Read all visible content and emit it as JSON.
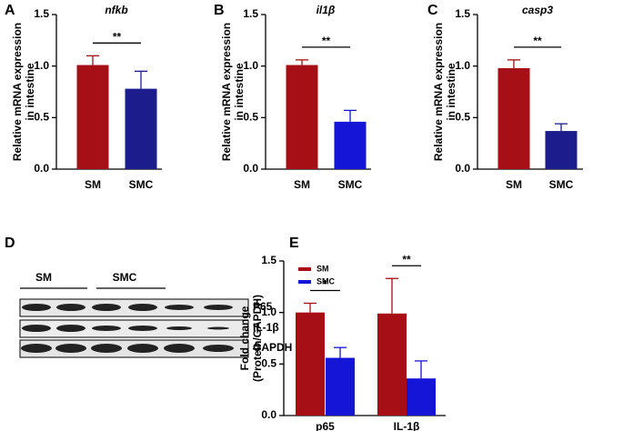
{
  "chart_data": [
    {
      "type": "bar",
      "panel_label": "A",
      "title": "nfkb",
      "ylabel": [
        "Relative mRNA expression",
        "in intestine"
      ],
      "categories": [
        "SM",
        "SMC"
      ],
      "values": [
        1.01,
        0.78
      ],
      "errors": [
        0.09,
        0.17
      ],
      "colors": [
        "#a50f15",
        "#1c1c8c"
      ],
      "annotation": "**",
      "ylim": [
        0,
        1.5
      ],
      "yticks": [
        {
          "value": 0,
          "label": "0.0"
        },
        0.5,
        {
          "value": 1,
          "label": "1.0"
        },
        1.5
      ]
    },
    {
      "type": "bar",
      "panel_label": "B",
      "title": "il1β",
      "ylabel": [
        "Relative mRNA expression",
        "in intestine"
      ],
      "categories": [
        "SM",
        "SMC"
      ],
      "values": [
        1.01,
        0.46
      ],
      "errors": [
        0.05,
        0.11
      ],
      "colors": [
        "#a50f15",
        "#1515d8"
      ],
      "annotation": "**",
      "ylim": [
        0,
        1.5
      ],
      "yticks": [
        {
          "value": 0,
          "label": "0.0"
        },
        0.5,
        {
          "value": 1,
          "label": "1.0"
        },
        1.5
      ]
    },
    {
      "type": "bar",
      "panel_label": "C",
      "title": "casp3",
      "ylabel": [
        "Relative mRNA expression",
        "in intestine"
      ],
      "categories": [
        "SM",
        "SMC"
      ],
      "values": [
        0.98,
        0.37
      ],
      "errors": [
        0.08,
        0.07
      ],
      "colors": [
        "#a50f15",
        "#1c1c8c"
      ],
      "annotation": "**",
      "ylim": [
        0,
        1.5
      ],
      "yticks": [
        {
          "value": 0,
          "label": "0.0"
        },
        0.5,
        {
          "value": 1,
          "label": "1.0"
        },
        1.5
      ]
    },
    {
      "type": "grouped_bar",
      "panel_label": "E",
      "ylabel": [
        "Fold change",
        "(Protein/GAPDH)"
      ],
      "categories": [
        "p65",
        "IL-1β"
      ],
      "annotations": [
        "*",
        "**"
      ],
      "series": [
        {
          "name": "SM",
          "color": "#a50f15",
          "values": [
            1.0,
            0.99
          ],
          "errors": [
            0.09,
            0.34
          ]
        },
        {
          "name": "SMC",
          "color": "#1515d8",
          "values": [
            0.56,
            0.36
          ],
          "errors": [
            0.1,
            0.17
          ]
        }
      ],
      "legend": "upper left",
      "ylim": [
        0,
        1.5
      ],
      "yticks": [
        {
          "value": 0,
          "label": "0.0"
        },
        0.5,
        {
          "value": 1,
          "label": "1.0"
        },
        1.5
      ]
    }
  ],
  "blot": {
    "panel_label": "D",
    "groups": [
      "SM",
      "SMC"
    ],
    "rows": [
      "P65",
      "IL-1β",
      "GAPDH"
    ]
  }
}
